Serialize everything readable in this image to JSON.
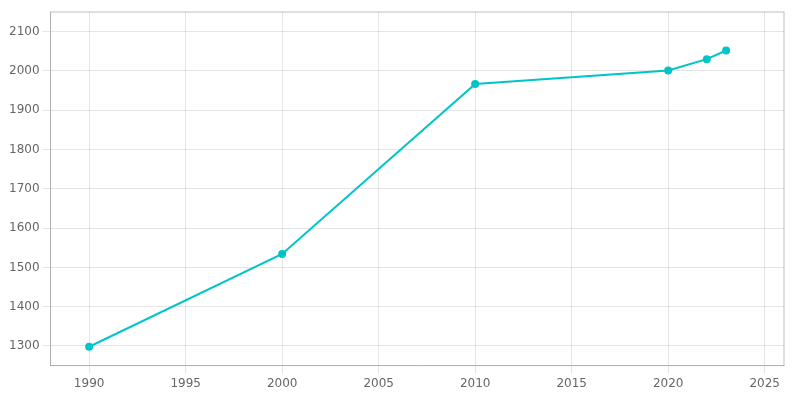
{
  "chart_data": {
    "type": "line",
    "x": [
      1990,
      2000,
      2010,
      2020,
      2022,
      2023
    ],
    "values": [
      1298,
      1534,
      1967,
      2001,
      2030,
      2052
    ],
    "color": "#00c5c8",
    "marker": "circle",
    "xlim": [
      1988,
      2026
    ],
    "xticks": [
      1990,
      1995,
      2000,
      2005,
      2010,
      2015,
      2020,
      2025
    ],
    "ylim": [
      1250,
      2150
    ],
    "yticks": [
      1300,
      1400,
      1500,
      1600,
      1700,
      1800,
      1900,
      2000,
      2100
    ],
    "grid": true
  }
}
